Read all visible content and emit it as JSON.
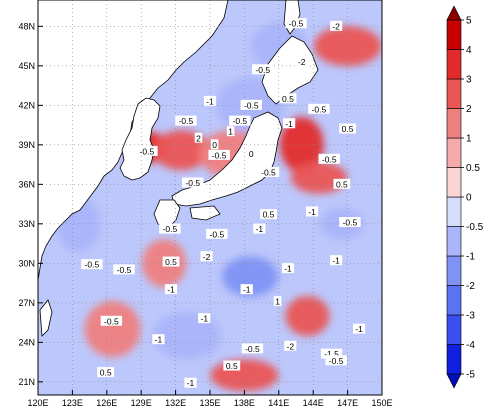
{
  "chart_data": {
    "type": "heatmap",
    "title": "",
    "subtitle": "",
    "xlabel": "",
    "ylabel": "",
    "xlim": [
      120,
      150
    ],
    "ylim": [
      20,
      50
    ],
    "x_ticks": [
      {
        "value": 120,
        "label": "120E"
      },
      {
        "value": 123,
        "label": "123E"
      },
      {
        "value": 126,
        "label": "126E"
      },
      {
        "value": 129,
        "label": "129E"
      },
      {
        "value": 132,
        "label": "132E"
      },
      {
        "value": 135,
        "label": "135E"
      },
      {
        "value": 138,
        "label": "138E"
      },
      {
        "value": 141,
        "label": "141E"
      },
      {
        "value": 144,
        "label": "144E"
      },
      {
        "value": 147,
        "label": "147E"
      },
      {
        "value": 150,
        "label": "150E"
      }
    ],
    "y_ticks": [
      {
        "value": 21,
        "label": "21N"
      },
      {
        "value": 24,
        "label": "24N"
      },
      {
        "value": 27,
        "label": "27N"
      },
      {
        "value": 30,
        "label": "30N"
      },
      {
        "value": 33,
        "label": "33N"
      },
      {
        "value": 36,
        "label": "36N"
      },
      {
        "value": 39,
        "label": "39N"
      },
      {
        "value": 42,
        "label": "42N"
      },
      {
        "value": 45,
        "label": "45N"
      },
      {
        "value": 48,
        "label": "48N"
      }
    ],
    "grid": "dotted",
    "colorbar": {
      "placement": "right",
      "levels": [
        -5,
        -4,
        -3,
        -2,
        -1,
        -0.5,
        0,
        0.5,
        1,
        2,
        3,
        4,
        5
      ],
      "tick_labels": [
        "-5",
        "-4",
        "-3",
        "-2",
        "-1",
        "-0.5",
        "0",
        "0.5",
        "1",
        "2",
        "3",
        "4",
        "5"
      ],
      "colors": [
        "#1020e0",
        "#3a4ff0",
        "#5a72f4",
        "#7f93f6",
        "#aab5fa",
        "#d6dcfc",
        "#fbd5d5",
        "#f4aaaa",
        "#ef8080",
        "#ea5555",
        "#e32a2a",
        "#c80000"
      ],
      "under_color": "#0010b8",
      "over_color": "#8a0000"
    },
    "regions": [
      {
        "name": "korea-east-sea-warm",
        "lon": 129.5,
        "lat": 38.8,
        "value": 3
      },
      {
        "name": "sea-of-japan-center-warm",
        "lon": 132.5,
        "lat": 38.6,
        "value": 2
      },
      {
        "name": "noto-warm",
        "lon": 137.0,
        "lat": 38.3,
        "value": 1
      },
      {
        "name": "tohoku-coast-warm",
        "lon": 143.0,
        "lat": 39.0,
        "value": 3
      },
      {
        "name": "sanriku-warm",
        "lon": 144.5,
        "lat": 36.5,
        "value": 2
      },
      {
        "name": "kuril-warm",
        "lon": 147.0,
        "lat": 46.5,
        "value": 2
      },
      {
        "name": "kuroshio-warm",
        "lon": 131.0,
        "lat": 30.0,
        "value": 1
      },
      {
        "name": "east-china-sea-warm",
        "lon": 126.5,
        "lat": 25.0,
        "value": 1
      },
      {
        "name": "south-warm-138",
        "lon": 138.0,
        "lat": 21.5,
        "value": 2
      },
      {
        "name": "south-warm-144",
        "lon": 143.5,
        "lat": 26.0,
        "value": 2
      },
      {
        "name": "okhotsk-cool",
        "lon": 141.0,
        "lat": 46.5,
        "value": -1
      },
      {
        "name": "japan-sea-north-cool",
        "lon": 138.5,
        "lat": 42.0,
        "value": -1
      },
      {
        "name": "pacific-east-cool",
        "lon": 146.5,
        "lat": 33.0,
        "value": -1
      },
      {
        "name": "philippine-sea-cool",
        "lon": 138.5,
        "lat": 29.0,
        "value": -2
      },
      {
        "name": "south-cool",
        "lon": 133.0,
        "lat": 24.5,
        "value": -1
      },
      {
        "name": "yellow-sea-cool",
        "lon": 123.5,
        "lat": 33.0,
        "value": -1
      }
    ],
    "contour_labels": [
      {
        "text": "-0.5",
        "lon": 142.5,
        "lat": 48.2
      },
      {
        "text": "-2",
        "lon": 146.0,
        "lat": 48.0
      },
      {
        "text": "-0.5",
        "lon": 139.6,
        "lat": 44.7
      },
      {
        "text": "-2",
        "lon": 143.0,
        "lat": 45.3
      },
      {
        "text": "-0.5",
        "lon": 138.6,
        "lat": 42.0
      },
      {
        "text": "0.5",
        "lon": 141.8,
        "lat": 42.5
      },
      {
        "text": "-1",
        "lon": 135.0,
        "lat": 42.3
      },
      {
        "text": "-0.5",
        "lon": 137.6,
        "lat": 40.8
      },
      {
        "text": "-0.5",
        "lon": 132.9,
        "lat": 40.8
      },
      {
        "text": "1",
        "lon": 136.8,
        "lat": 40.0
      },
      {
        "text": "-0.5",
        "lon": 129.5,
        "lat": 38.5
      },
      {
        "text": "2",
        "lon": 134.0,
        "lat": 39.5
      },
      {
        "text": "0",
        "lon": 135.4,
        "lat": 39.0
      },
      {
        "text": "-0.5",
        "lon": 135.8,
        "lat": 38.2
      },
      {
        "text": "-0.5",
        "lon": 133.5,
        "lat": 36.1
      },
      {
        "text": "0",
        "lon": 138.6,
        "lat": 38.3
      },
      {
        "text": "-1",
        "lon": 141.9,
        "lat": 40.6
      },
      {
        "text": "-0.5",
        "lon": 144.5,
        "lat": 41.7
      },
      {
        "text": "0.5",
        "lon": 147.0,
        "lat": 40.2
      },
      {
        "text": "-0.5",
        "lon": 145.4,
        "lat": 37.9
      },
      {
        "text": "0.5",
        "lon": 140.1,
        "lat": 33.7
      },
      {
        "text": "0.5",
        "lon": 146.5,
        "lat": 36.0
      },
      {
        "text": "-0.5",
        "lon": 140.1,
        "lat": 36.9
      },
      {
        "text": "-1",
        "lon": 143.9,
        "lat": 33.9
      },
      {
        "text": "-0.5",
        "lon": 147.2,
        "lat": 33.1
      },
      {
        "text": "-0.5",
        "lon": 131.5,
        "lat": 32.6
      },
      {
        "text": "-0.5",
        "lon": 135.6,
        "lat": 32.2
      },
      {
        "text": "-1",
        "lon": 139.3,
        "lat": 32.6
      },
      {
        "text": "0.5",
        "lon": 131.6,
        "lat": 30.1
      },
      {
        "text": "-0.5",
        "lon": 124.7,
        "lat": 29.9
      },
      {
        "text": "-2",
        "lon": 134.7,
        "lat": 30.5
      },
      {
        "text": "-1",
        "lon": 141.8,
        "lat": 29.6
      },
      {
        "text": "-1",
        "lon": 146.0,
        "lat": 30.2
      },
      {
        "text": "-0.5",
        "lon": 127.5,
        "lat": 29.5
      },
      {
        "text": "-1",
        "lon": 131.6,
        "lat": 28.0
      },
      {
        "text": "-1",
        "lon": 138.2,
        "lat": 28.0
      },
      {
        "text": "-0.5",
        "lon": 126.4,
        "lat": 25.6
      },
      {
        "text": "1",
        "lon": 140.9,
        "lat": 27.1
      },
      {
        "text": "-1",
        "lon": 134.5,
        "lat": 25.8
      },
      {
        "text": "-1",
        "lon": 130.5,
        "lat": 24.2
      },
      {
        "text": "-0.5",
        "lon": 138.7,
        "lat": 23.5
      },
      {
        "text": "-2",
        "lon": 142.0,
        "lat": 23.7
      },
      {
        "text": "0.5",
        "lon": 136.9,
        "lat": 22.2
      },
      {
        "text": "-1.5",
        "lon": 145.6,
        "lat": 23.1
      },
      {
        "text": "0.5",
        "lon": 125.9,
        "lat": 21.7
      },
      {
        "text": "-1",
        "lon": 133.3,
        "lat": 20.9
      },
      {
        "text": "-0.5",
        "lon": 146.0,
        "lat": 22.6
      },
      {
        "text": "-1",
        "lon": 148.0,
        "lat": 25.0
      }
    ]
  }
}
